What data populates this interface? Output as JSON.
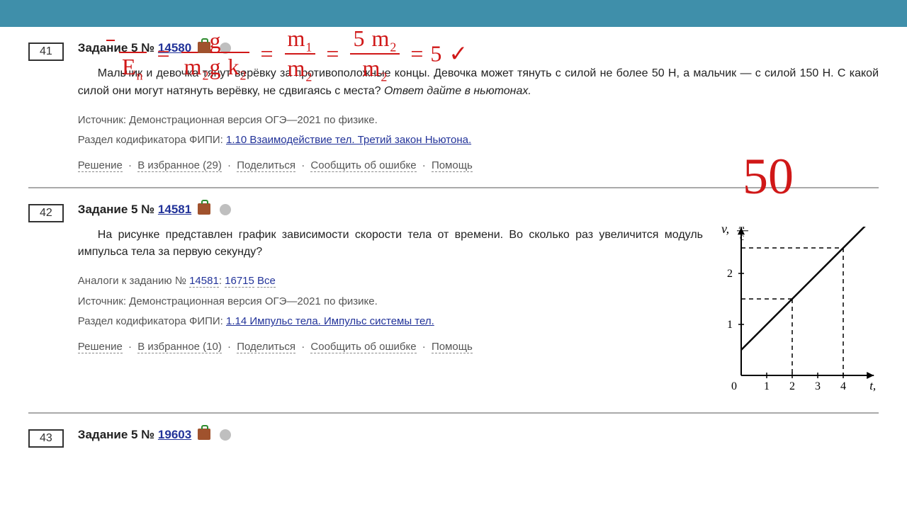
{
  "tasks": [
    {
      "num": "41",
      "label": "Задание 5 №",
      "id": "14580",
      "text": "Мальчик и девочка тянут верёвку за противоположные концы. Девочка может тянуть с силой не более 50 Н, а мальчик — с силой 150 Н. С какой силой они могут натянуть верёвку, не сдвигаясь с места? ",
      "text_italic": "Ответ дайте в ньютонах.",
      "source_label": "Источник: ",
      "source": "Демонстрационная версия ОГЭ—2021 по физике.",
      "codifier_label": "Раздел кодификатора ФИПИ: ",
      "codifier": "1.10 Взаимодействие тел. Третий закон Ньютона.",
      "fav_count": "29"
    },
    {
      "num": "42",
      "label": "Задание 5 №",
      "id": "14581",
      "text": "На рисунке представлен график зависимости скорости тела от времени. Во сколько раз увеличится модуль импульса тела за первую секунду?",
      "analogs_label": "Аналоги к заданию № ",
      "analog_self": "14581",
      "analog_other": "16715",
      "analog_all": "Все",
      "source_label": "Источник: ",
      "source": "Демонстрационная версия ОГЭ—2021 по физике.",
      "codifier_label": "Раздел кодификатора ФИПИ: ",
      "codifier": "1.14 Импульс тела. Импульс системы тел.",
      "fav_count": "10"
    },
    {
      "num": "43",
      "label": "Задание 5 №",
      "id": "19603"
    }
  ],
  "actions": {
    "solution": "Решение",
    "favorite_prefix": "В избранное (",
    "favorite_suffix": ")",
    "share": "Поделиться",
    "report": "Сообщить об ошибке",
    "help": "Помощь"
  },
  "graph": {
    "y_label": "v,",
    "y_unit_top": "м",
    "y_unit_bot": "с",
    "x_label": "t, с",
    "y_ticks": [
      "1",
      "2"
    ],
    "x_ticks": [
      "0",
      "1",
      "2",
      "3",
      "4"
    ],
    "line_start": [
      0,
      0.5
    ],
    "line_end": [
      5,
      3
    ],
    "dash1_x": 2,
    "dash1_y": 1.5,
    "dash2_x": 4,
    "dash2_y": 2.5,
    "axis_color": "#000000",
    "dash_color": "#000000",
    "plot": {
      "ox": 36,
      "oy": 210,
      "sx": 36,
      "sy": 72
    }
  },
  "handwriting": {
    "answer": "50",
    "formula_text": "= 5 ✓",
    "color": "#d01818"
  }
}
